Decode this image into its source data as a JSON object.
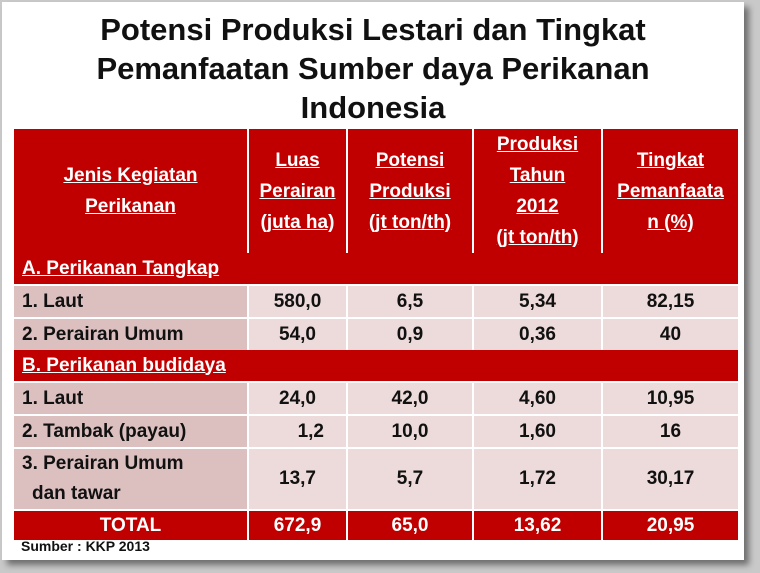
{
  "title": {
    "line1": "Potensi Produksi Lestari dan Tingkat",
    "line2": "Pemanfaatan Sumber daya Perikanan",
    "line3": "Indonesia"
  },
  "headers": [
    {
      "lines": [
        "Jenis Kegiatan",
        "Perikanan"
      ]
    },
    {
      "lines": [
        "Luas",
        "Perairan",
        "(juta ha)"
      ]
    },
    {
      "lines": [
        "Potensi",
        "Produksi",
        "(jt ton/th)"
      ]
    },
    {
      "lines": [
        "Produksi",
        "Tahun",
        "2012",
        "(jt ton/th)"
      ]
    },
    {
      "lines": [
        "Tingkat",
        "Pemanfaata",
        "n (%)"
      ]
    }
  ],
  "sections": [
    {
      "label": "A. Perikanan Tangkap",
      "rows": [
        {
          "name": "1. Laut",
          "luas": "580,0",
          "potensi": "6,5",
          "produksi": "5,34",
          "tingkat": "82,15"
        },
        {
          "name": "2. Perairan Umum",
          "luas": "54,0",
          "potensi": "0,9",
          "produksi": "0,36",
          "tingkat": "40"
        }
      ]
    },
    {
      "label": "B. Perikanan budidaya",
      "rows": [
        {
          "name": "1. Laut",
          "luas": "24,0",
          "potensi": "42,0",
          "produksi": "4,60",
          "tingkat": "10,95"
        },
        {
          "name": "2. Tambak (payau)",
          "luas": "1,2",
          "potensi": "10,0",
          "produksi": "1,60",
          "tingkat": "16"
        },
        {
          "name_line1": "3. Perairan Umum",
          "name_line2": "dan tawar",
          "luas": "13,7",
          "potensi": "5,7",
          "produksi": "1,72",
          "tingkat": "30,17"
        }
      ]
    }
  ],
  "total": {
    "label": "TOTAL",
    "luas": "672,9",
    "potensi": "65,0",
    "produksi": "13,62",
    "tingkat": "20,95"
  },
  "source": "Sumber : KKP 2013",
  "colors": {
    "header_red": "#c00000",
    "label_cell": "#dcc0c0",
    "data_cell": "#eddada"
  }
}
